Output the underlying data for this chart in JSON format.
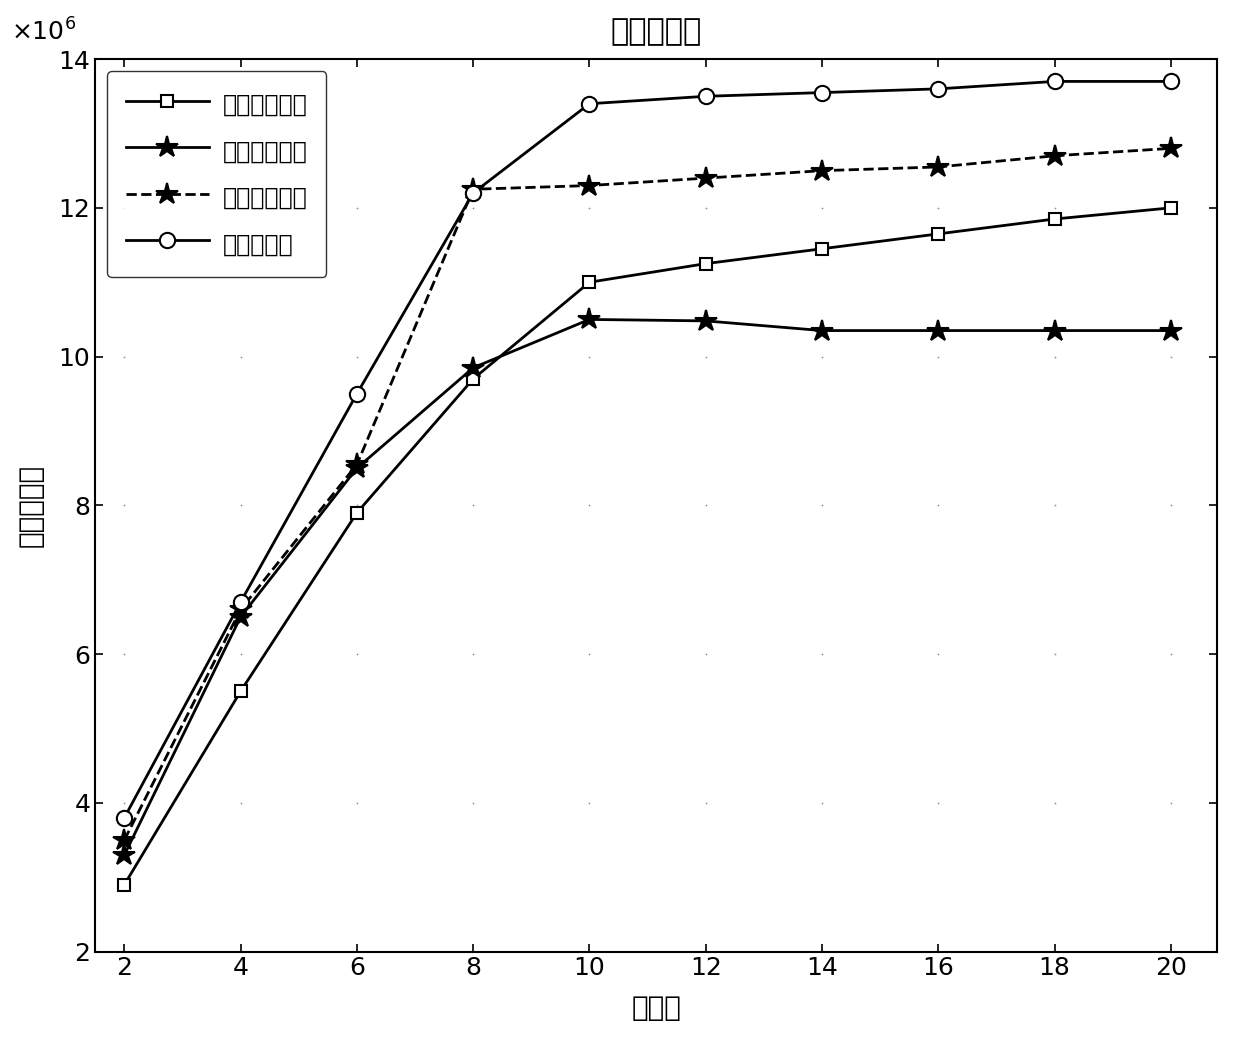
{
  "title": "吞吐量比较",
  "xlabel": "用户数",
  "ylabel": "系统吞吐量",
  "x": [
    2,
    4,
    6,
    8,
    10,
    12,
    14,
    16,
    18,
    20
  ],
  "series": [
    {
      "name": "资源优先方法",
      "values": [
        2900000.0,
        5500000.0,
        7900000.0,
        9700000.0,
        11000000.0,
        11250000.0,
        11450000.0,
        11650000.0,
        11850000.0,
        12000000.0
      ],
      "marker": "s",
      "linestyle": "-",
      "markersize": 9,
      "markerfacecolor": "white"
    },
    {
      "name": "需求优先方法",
      "values": [
        3300000.0,
        6500000.0,
        8500000.0,
        9850000.0,
        10500000.0,
        10480000.0,
        10350000.0,
        10350000.0,
        10350000.0,
        10350000.0
      ],
      "marker": "*",
      "linestyle": "-",
      "markersize": 16,
      "markerfacecolor": "black"
    },
    {
      "name": "随机接入方法",
      "values": [
        3500000.0,
        6600000.0,
        8550000.0,
        12250000.0,
        12300000.0,
        12400000.0,
        12500000.0,
        12550000.0,
        12700000.0,
        12800000.0
      ],
      "marker": "*",
      "linestyle": "--",
      "markersize": 16,
      "markerfacecolor": "black"
    },
    {
      "name": "本发明方法",
      "values": [
        3800000.0,
        6700000.0,
        9500000.0,
        12200000.0,
        13400000.0,
        13500000.0,
        13550000.0,
        13600000.0,
        13700000.0,
        13700000.0
      ],
      "marker": "o",
      "linestyle": "-",
      "markersize": 11,
      "markerfacecolor": "white"
    }
  ],
  "ylim": [
    2000000.0,
    14000000.0
  ],
  "xlim_min": 1.5,
  "xlim_max": 20.8,
  "yticks": [
    2000000.0,
    4000000.0,
    6000000.0,
    8000000.0,
    10000000.0,
    12000000.0,
    14000000.0
  ],
  "xticks": [
    2,
    4,
    6,
    8,
    10,
    12,
    14,
    16,
    18,
    20
  ],
  "linewidth": 2.0,
  "title_fontsize": 22,
  "label_fontsize": 20,
  "tick_fontsize": 18,
  "legend_fontsize": 17,
  "figwidth": 12.34,
  "figheight": 10.39,
  "dpi": 100
}
